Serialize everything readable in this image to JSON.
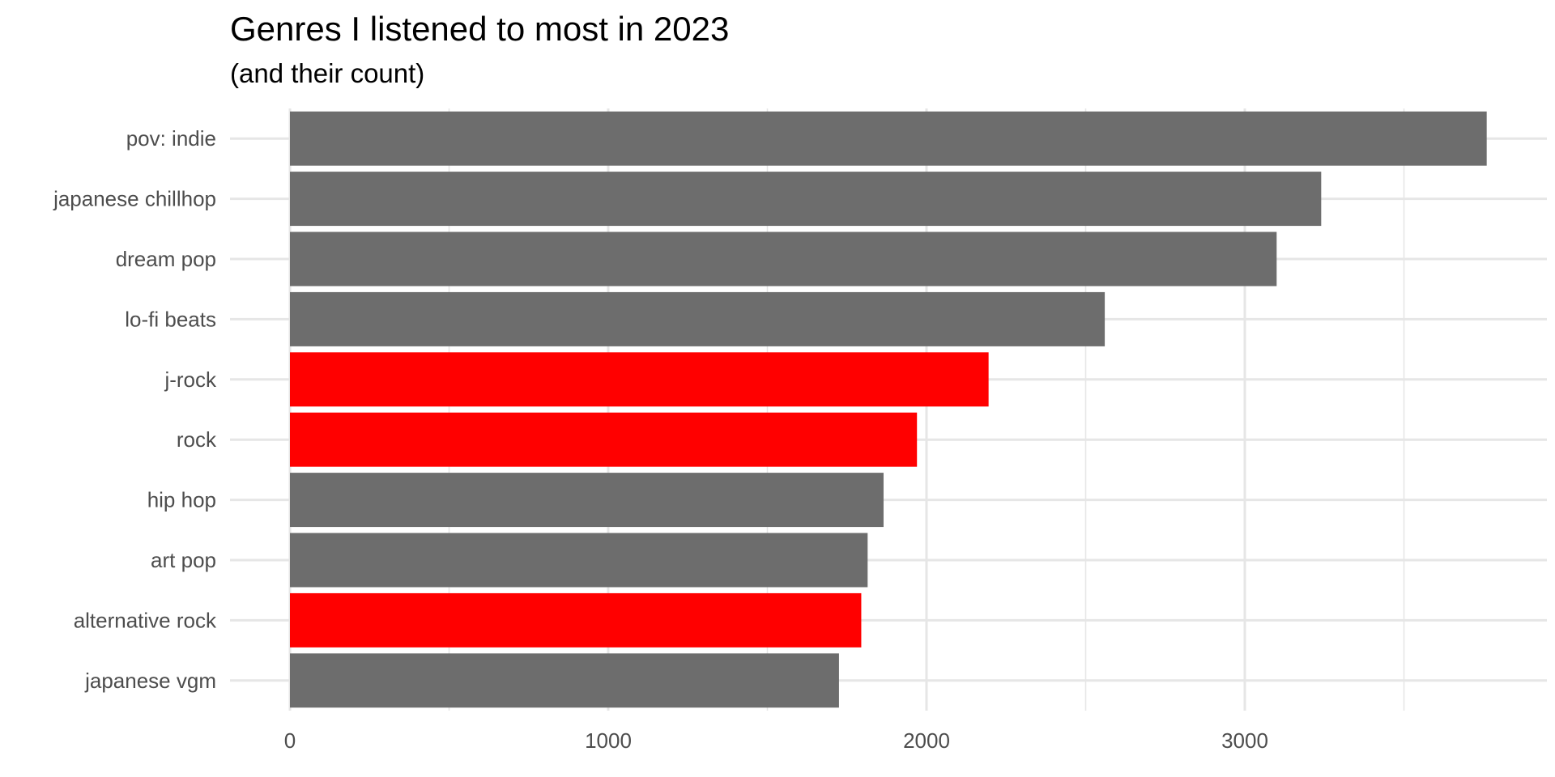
{
  "chart_data": {
    "type": "bar",
    "orientation": "horizontal",
    "title": "Genres I listened to most in 2023",
    "subtitle": "(and their count)",
    "xlabel": "",
    "ylabel": "",
    "xlim": [
      0,
      3950
    ],
    "x_ticks": [
      0,
      1000,
      2000,
      3000
    ],
    "grid": true,
    "legend": "none",
    "categories": [
      "pov: indie",
      "japanese chillhop",
      "dream pop",
      "lo-fi beats",
      "j-rock",
      "rock",
      "hip hop",
      "art pop",
      "alternative rock",
      "japanese vgm"
    ],
    "values": [
      3760,
      3240,
      3100,
      2560,
      2195,
      1970,
      1865,
      1815,
      1795,
      1725
    ],
    "highlighted": [
      false,
      false,
      false,
      false,
      true,
      true,
      false,
      false,
      true,
      false
    ],
    "colors": {
      "default": "#6d6d6d",
      "highlight": "#ff0000",
      "grid": "#e6e6e6"
    }
  }
}
